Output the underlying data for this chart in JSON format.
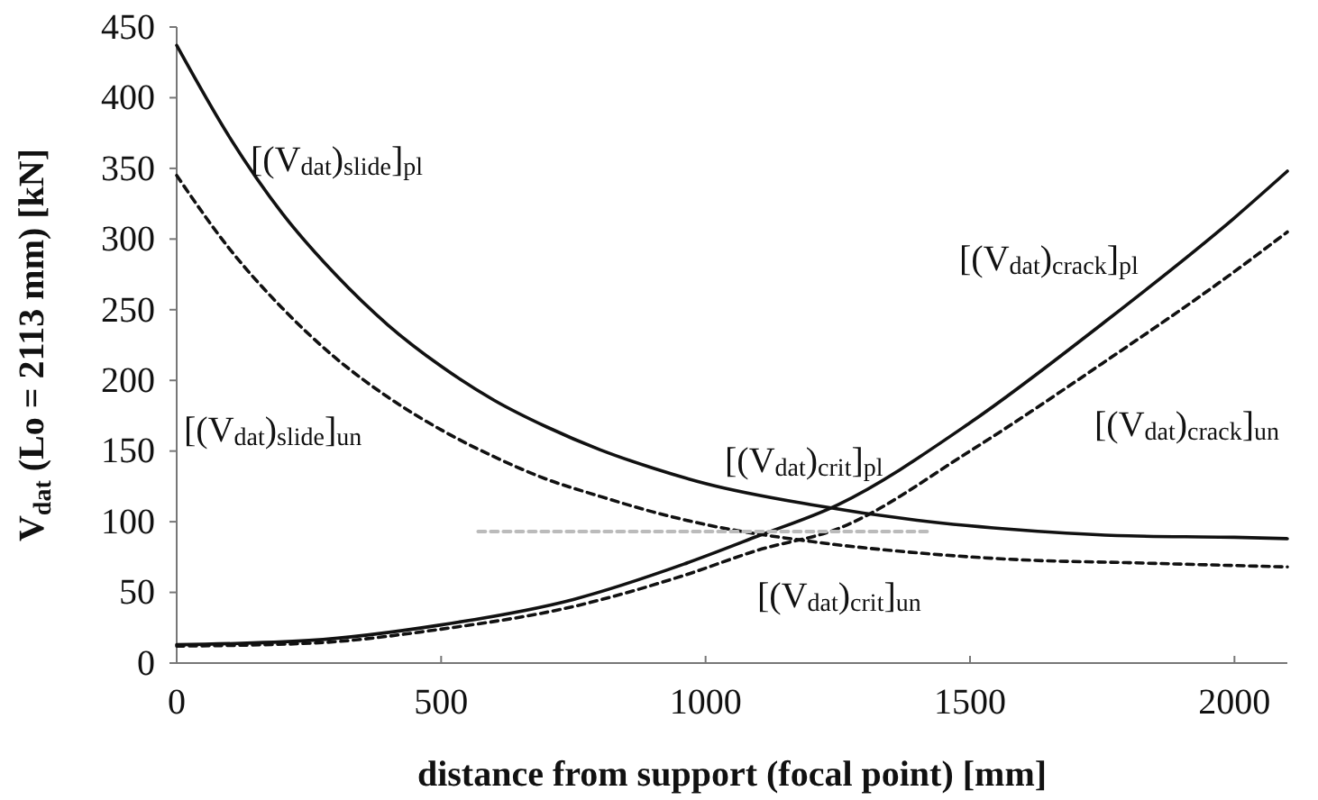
{
  "chart_data": {
    "type": "line",
    "xlabel": "distance from support (focal point) [mm]",
    "ylabel": "V$_{dat}$ (Lo = 2113 mm) [kN]",
    "xlim": [
      0,
      2100
    ],
    "ylim": [
      0,
      450
    ],
    "xticks": [
      0,
      500,
      1000,
      1500,
      2000
    ],
    "yticks": [
      0,
      50,
      100,
      150,
      200,
      250,
      300,
      350,
      400,
      450
    ],
    "grid": false,
    "marker": "none",
    "series": [
      {
        "name": "[(V$_{dat}$)$_{slide}$]$_{pl}$",
        "color": "#111111",
        "line_style": "solid",
        "x": [
          0,
          100,
          200,
          300,
          400,
          500,
          600,
          700,
          800,
          900,
          1000,
          1200,
          1400,
          1600,
          1800,
          2000,
          2100
        ],
        "values": [
          437,
          372,
          318,
          275,
          239,
          210,
          186,
          167,
          151,
          138,
          127,
          112,
          101,
          94,
          90,
          89,
          88
        ]
      },
      {
        "name": "[(V$_{dat}$)$_{slide}$]$_{un}$",
        "color": "#111111",
        "line_style": "dashed",
        "x": [
          0,
          100,
          200,
          300,
          400,
          500,
          600,
          700,
          800,
          900,
          1000,
          1200,
          1400,
          1600,
          1800,
          2000,
          2100
        ],
        "values": [
          345,
          293,
          251,
          216,
          188,
          165,
          146,
          130,
          118,
          107,
          98,
          86,
          78,
          73,
          71,
          69,
          68
        ]
      },
      {
        "name": "[(V$_{dat}$)$_{crack}$]$_{pl}$",
        "color": "#111111",
        "line_style": "solid",
        "x": [
          0,
          250,
          500,
          750,
          959,
          1100,
          1250,
          1500,
          1750,
          2000,
          2100
        ],
        "values": [
          13,
          16,
          27,
          45,
          70,
          90,
          112,
          170,
          240,
          315,
          348
        ]
      },
      {
        "name": "[(V$_{dat}$)$_{crack}$]$_{un}$",
        "color": "#111111",
        "line_style": "dashed",
        "x": [
          0,
          250,
          500,
          750,
          959,
          1100,
          1250,
          1500,
          1750,
          2000,
          2100
        ],
        "values": [
          12,
          14,
          24,
          40,
          62,
          80,
          95,
          150,
          212,
          277,
          305
        ]
      },
      {
        "color": "#bbbbbb",
        "line_style": "dashed",
        "x": [
          570,
          1420
        ],
        "values": [
          93,
          93
        ]
      }
    ],
    "annotations": [
      "[(V$_{dat}$)$_{crit}$]$_{pl}$",
      "[(V$_{dat}$)$_{crit}$]$_{un}$"
    ]
  }
}
